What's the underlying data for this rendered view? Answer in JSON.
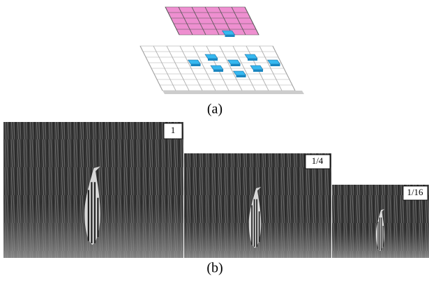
{
  "figure": {
    "panel_a": {
      "label": "(a)"
    },
    "panel_b": {
      "label": "(b)",
      "images": [
        {
          "scale": "1"
        },
        {
          "scale": "1/4"
        },
        {
          "scale": "1/16"
        }
      ]
    }
  }
}
